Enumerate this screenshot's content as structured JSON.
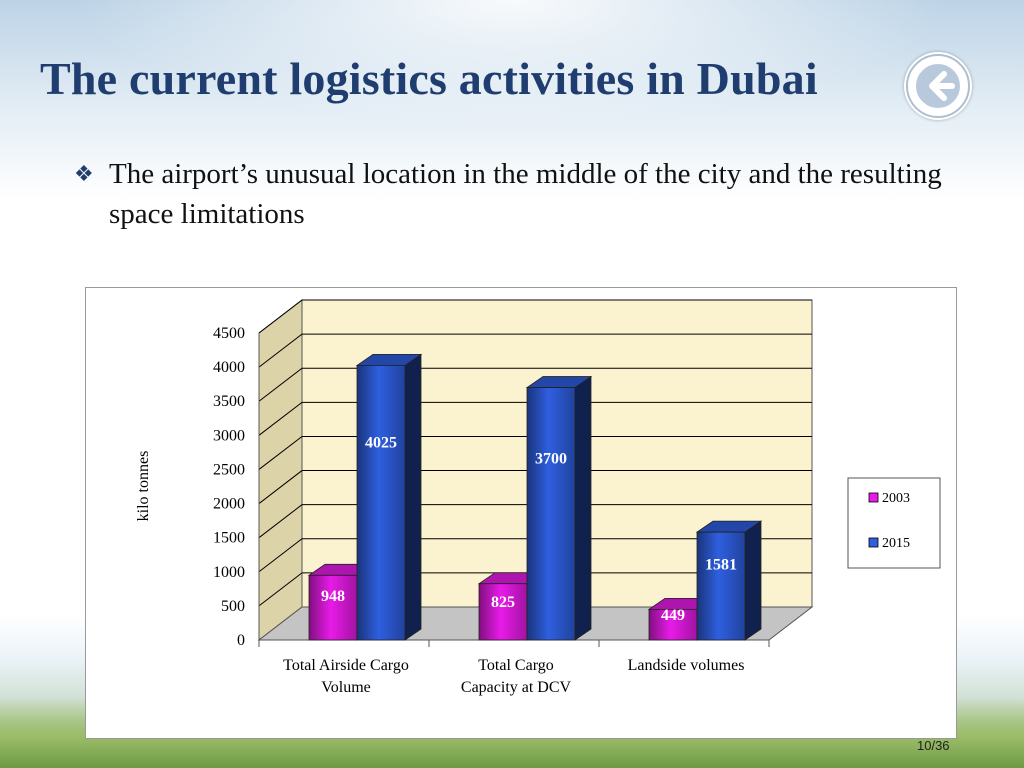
{
  "slide": {
    "title": "The current logistics activities in Dubai",
    "bullet_mark": "❖",
    "bullet_text": "The airport’s unusual location in the middle of the city and the resulting space limitations",
    "page_number": "10/36",
    "back_icon": "left-arrow-circle-icon"
  },
  "chart_data": {
    "type": "bar",
    "title": "",
    "xlabel": "",
    "ylabel": "kilo tonnes",
    "ylim": [
      0,
      4500
    ],
    "yticks": [
      0,
      500,
      1000,
      1500,
      2000,
      2500,
      3000,
      3500,
      4000,
      4500
    ],
    "categories": [
      "Total Airside Cargo Volume",
      "Total Cargo Capacity at DCV",
      "Landside volumes"
    ],
    "category_lines": [
      [
        "Total Airside Cargo",
        "Volume"
      ],
      [
        "Total Cargo",
        "Capacity at DCV"
      ],
      [
        "Landside volumes"
      ]
    ],
    "series": [
      {
        "name": "2003",
        "values": [
          948,
          825,
          449
        ],
        "color": "#e81be8"
      },
      {
        "name": "2015",
        "values": [
          4025,
          3700,
          1581
        ],
        "color": "#2f5fe0"
      }
    ],
    "grid": true,
    "legend": "right",
    "three_d": true
  }
}
